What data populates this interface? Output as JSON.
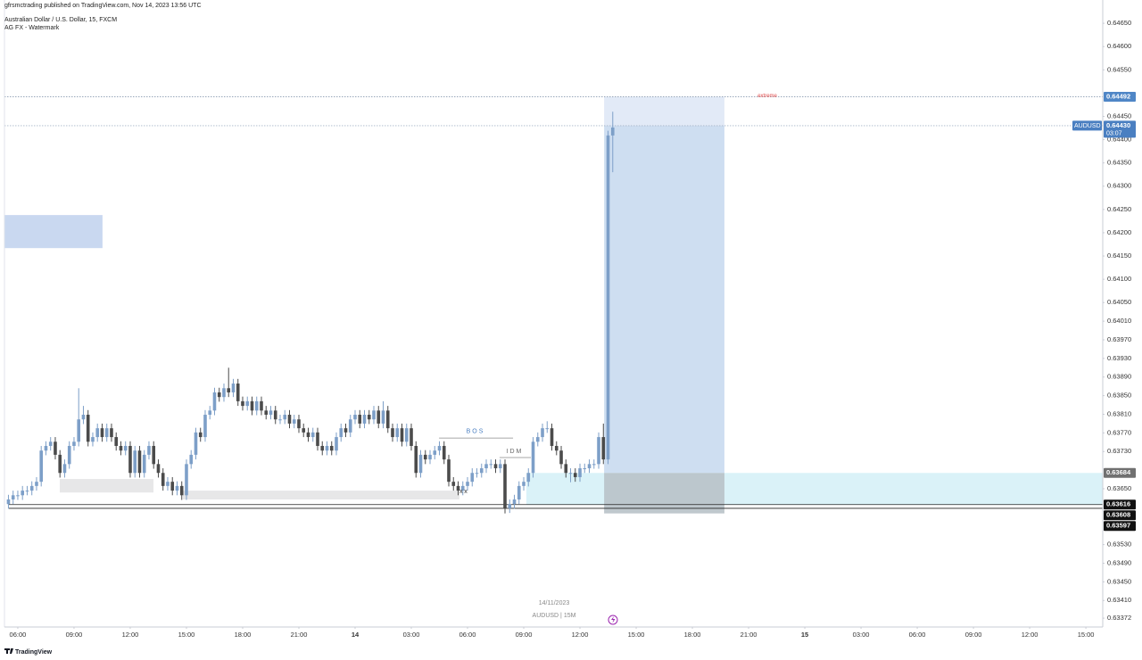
{
  "chart_data": {
    "type": "candlestick",
    "publisher": "gfrsmctrading published on TradingView.com, Nov 14, 2023 13:56 UTC",
    "title": "Australian Dollar / U.S. Dollar, 15, FXCM",
    "subtitle": "AG FX - Watermark",
    "footer_date": "14/11/2023",
    "footer_symbol": "AUDUSD | 15M",
    "brand": "TradingView",
    "up_color": "#7d9fc8",
    "down_color": "#4b4b4b",
    "x": [
      5.5,
      5.75,
      6,
      6.25,
      6.5,
      6.75,
      7,
      7.25,
      7.5,
      7.75,
      8,
      8.25,
      8.5,
      8.75,
      9,
      9.25,
      9.5,
      9.75,
      10,
      10.25,
      10.5,
      10.75,
      11,
      11.25,
      11.5,
      11.75,
      12,
      12.25,
      12.5,
      12.75,
      13,
      13.25,
      13.5,
      13.75,
      14,
      14.25,
      14.5,
      14.75,
      15,
      15.25,
      15.5,
      15.75,
      16,
      16.25,
      16.5,
      16.75,
      17,
      17.25,
      17.5,
      17.75,
      18,
      18.25,
      18.5,
      18.75,
      19,
      19.25,
      19.5,
      19.75,
      20,
      20.25,
      20.5,
      20.75,
      21,
      21.25,
      21.5,
      21.75,
      22,
      22.25,
      22.5,
      22.75,
      23,
      23.25,
      23.5,
      23.75,
      24,
      24.25,
      24.5,
      24.75,
      25,
      25.25,
      25.5,
      25.75,
      26,
      26.25,
      26.5,
      26.75,
      27,
      27.25,
      27.5,
      27.75,
      28,
      28.25,
      28.5,
      28.75,
      29,
      29.25,
      29.5,
      29.75,
      30,
      30.25,
      30.5,
      30.75,
      31,
      31.25,
      31.5,
      31.75,
      32,
      32.25,
      32.5,
      32.75,
      33,
      33.25,
      33.5,
      33.75,
      34,
      34.25,
      34.5,
      34.75,
      35,
      35.25,
      35.5,
      35.75,
      36,
      36.25,
      36.5,
      36.75,
      37,
      37.25,
      37.5,
      37.75
    ],
    "open": [
      0.63617,
      0.63627,
      0.63636,
      0.63636,
      0.63646,
      0.63646,
      0.63656,
      0.63665,
      0.63732,
      0.63742,
      0.63751,
      0.63723,
      0.63684,
      0.63703,
      0.63742,
      0.63751,
      0.63799,
      0.63809,
      0.63751,
      0.63761,
      0.6378,
      0.63761,
      0.6378,
      0.63761,
      0.63742,
      0.63732,
      0.63742,
      0.63684,
      0.63732,
      0.63684,
      0.63723,
      0.63742,
      0.63703,
      0.63684,
      0.63656,
      0.63665,
      0.63646,
      0.63656,
      0.63636,
      0.63703,
      0.63723,
      0.63771,
      0.63761,
      0.63809,
      0.63818,
      0.63857,
      0.63847,
      0.63866,
      0.63857,
      0.63876,
      0.63838,
      0.63828,
      0.63838,
      0.63818,
      0.63838,
      0.63818,
      0.63809,
      0.63818,
      0.63799,
      0.63799,
      0.63809,
      0.6379,
      0.63799,
      0.6378,
      0.63771,
      0.63761,
      0.63771,
      0.63742,
      0.63732,
      0.63742,
      0.63732,
      0.63761,
      0.6378,
      0.63771,
      0.63799,
      0.63809,
      0.6379,
      0.63809,
      0.63799,
      0.63818,
      0.6379,
      0.63818,
      0.6378,
      0.63761,
      0.6378,
      0.63751,
      0.6378,
      0.63742,
      0.63684,
      0.63723,
      0.63713,
      0.63723,
      0.63732,
      0.63742,
      0.63713,
      0.63665,
      0.63656,
      0.63646,
      0.63656,
      0.63665,
      0.63684,
      0.63684,
      0.63694,
      0.63703,
      0.63703,
      0.63694,
      0.63703,
      0.63608,
      0.63617,
      0.63627,
      0.63656,
      0.63665,
      0.63684,
      0.63751,
      0.63761,
      0.6378,
      0.6378,
      0.63742,
      0.63732,
      0.63703,
      0.63684,
      0.63684,
      0.63675,
      0.63694,
      0.63694,
      0.63703,
      0.63703,
      0.63761,
      0.63713,
      0.64409
    ],
    "high": [
      0.63637,
      0.63646,
      0.63646,
      0.63656,
      0.63656,
      0.63666,
      0.63675,
      0.63742,
      0.63752,
      0.63761,
      0.63761,
      0.63733,
      0.63713,
      0.63752,
      0.63761,
      0.63866,
      0.63828,
      0.63819,
      0.63771,
      0.6379,
      0.6379,
      0.6379,
      0.6379,
      0.63771,
      0.63752,
      0.63752,
      0.63752,
      0.63742,
      0.63742,
      0.63733,
      0.63752,
      0.63752,
      0.63713,
      0.63694,
      0.63675,
      0.63675,
      0.63666,
      0.63666,
      0.63713,
      0.63733,
      0.63781,
      0.63781,
      0.63819,
      0.63828,
      0.63867,
      0.63867,
      0.63876,
      0.6391,
      0.63886,
      0.63886,
      0.63848,
      0.63848,
      0.63848,
      0.63848,
      0.63848,
      0.63828,
      0.63828,
      0.63828,
      0.63809,
      0.63819,
      0.63819,
      0.63809,
      0.63809,
      0.6379,
      0.63781,
      0.63781,
      0.63781,
      0.63752,
      0.63752,
      0.63752,
      0.63771,
      0.6379,
      0.6379,
      0.63809,
      0.63819,
      0.63819,
      0.63819,
      0.63819,
      0.63828,
      0.63828,
      0.63838,
      0.63828,
      0.6379,
      0.6379,
      0.6379,
      0.6379,
      0.6379,
      0.63752,
      0.63733,
      0.63733,
      0.63733,
      0.63742,
      0.63752,
      0.63752,
      0.63723,
      0.63675,
      0.63666,
      0.63666,
      0.63675,
      0.63694,
      0.63694,
      0.63704,
      0.63713,
      0.63713,
      0.63713,
      0.63713,
      0.63713,
      0.63627,
      0.63637,
      0.63666,
      0.63675,
      0.63694,
      0.63761,
      0.63771,
      0.6379,
      0.63795,
      0.6379,
      0.63752,
      0.63742,
      0.63713,
      0.63694,
      0.63694,
      0.63704,
      0.63704,
      0.63713,
      0.63713,
      0.63771,
      0.6379,
      0.64419,
      0.6446
    ],
    "low": [
      0.63607,
      0.63617,
      0.63626,
      0.63626,
      0.63636,
      0.63636,
      0.63646,
      0.63655,
      0.63722,
      0.63732,
      0.63713,
      0.63674,
      0.63674,
      0.63693,
      0.63732,
      0.63741,
      0.63789,
      0.63741,
      0.63741,
      0.63751,
      0.63751,
      0.63751,
      0.63751,
      0.63732,
      0.63722,
      0.63722,
      0.63674,
      0.63674,
      0.63674,
      0.63674,
      0.63713,
      0.63693,
      0.63674,
      0.63646,
      0.63646,
      0.63636,
      0.63636,
      0.63626,
      0.63626,
      0.63693,
      0.63713,
      0.63751,
      0.63751,
      0.63799,
      0.63808,
      0.63837,
      0.63837,
      0.63847,
      0.63847,
      0.63828,
      0.63818,
      0.63818,
      0.63808,
      0.63808,
      0.63808,
      0.63799,
      0.63799,
      0.63789,
      0.63789,
      0.63789,
      0.6378,
      0.6378,
      0.6377,
      0.63761,
      0.63751,
      0.63751,
      0.63732,
      0.63722,
      0.63722,
      0.63722,
      0.63722,
      0.63751,
      0.63761,
      0.63761,
      0.63789,
      0.6378,
      0.6378,
      0.63789,
      0.63789,
      0.6378,
      0.6378,
      0.6377,
      0.63751,
      0.63751,
      0.63741,
      0.63741,
      0.63732,
      0.63674,
      0.63674,
      0.63703,
      0.63703,
      0.63713,
      0.63722,
      0.63703,
      0.63655,
      0.63646,
      0.63636,
      0.63636,
      0.63646,
      0.63655,
      0.63674,
      0.63674,
      0.63684,
      0.63693,
      0.63684,
      0.63684,
      0.63597,
      0.63598,
      0.63607,
      0.63617,
      0.63646,
      0.63655,
      0.63674,
      0.63741,
      0.63751,
      0.6377,
      0.63732,
      0.63722,
      0.63693,
      0.63674,
      0.63664,
      0.63665,
      0.63665,
      0.63684,
      0.63684,
      0.63693,
      0.63693,
      0.63703,
      0.63703,
      0.6433
    ],
    "close": [
      0.63627,
      0.63636,
      0.63636,
      0.63646,
      0.63646,
      0.63656,
      0.63665,
      0.63732,
      0.63742,
      0.63751,
      0.63723,
      0.63684,
      0.63703,
      0.63742,
      0.63751,
      0.63799,
      0.63809,
      0.63751,
      0.63761,
      0.6378,
      0.63761,
      0.6378,
      0.63761,
      0.63742,
      0.63732,
      0.63742,
      0.63684,
      0.63732,
      0.63684,
      0.63723,
      0.63742,
      0.63703,
      0.63684,
      0.63656,
      0.63665,
      0.63646,
      0.63656,
      0.63636,
      0.63703,
      0.63723,
      0.63771,
      0.63761,
      0.63809,
      0.63818,
      0.63857,
      0.63847,
      0.63866,
      0.63857,
      0.63876,
      0.63838,
      0.63828,
      0.63838,
      0.63818,
      0.63838,
      0.63818,
      0.63809,
      0.63818,
      0.63799,
      0.63799,
      0.63809,
      0.6379,
      0.63799,
      0.6378,
      0.63771,
      0.63761,
      0.63771,
      0.63742,
      0.63732,
      0.63742,
      0.63732,
      0.63761,
      0.6378,
      0.63771,
      0.63799,
      0.63809,
      0.6379,
      0.63809,
      0.63799,
      0.63818,
      0.6379,
      0.63818,
      0.6378,
      0.63761,
      0.6378,
      0.63751,
      0.6378,
      0.63742,
      0.63684,
      0.63723,
      0.63713,
      0.63723,
      0.63732,
      0.63742,
      0.63713,
      0.63665,
      0.63656,
      0.63646,
      0.63656,
      0.63665,
      0.63684,
      0.63684,
      0.63694,
      0.63703,
      0.63703,
      0.63694,
      0.63703,
      0.63608,
      0.63617,
      0.63627,
      0.63656,
      0.63665,
      0.63684,
      0.63751,
      0.63761,
      0.6378,
      0.6378,
      0.63742,
      0.63732,
      0.63703,
      0.63684,
      0.63684,
      0.63675,
      0.63694,
      0.63694,
      0.63703,
      0.63703,
      0.63761,
      0.63713,
      0.64409,
      0.64426
    ],
    "xlim": [
      5.05,
      63.9
    ],
    "xticks": [
      {
        "value": 6,
        "label": "06:00"
      },
      {
        "value": 9,
        "label": "09:00"
      },
      {
        "value": 12,
        "label": "12:00"
      },
      {
        "value": 15,
        "label": "15:00"
      },
      {
        "value": 18,
        "label": "18:00"
      },
      {
        "value": 21,
        "label": "21:00"
      },
      {
        "value": 24,
        "label": "14"
      },
      {
        "value": 27,
        "label": "03:00"
      },
      {
        "value": 30,
        "label": "06:00"
      },
      {
        "value": 33,
        "label": "09:00"
      },
      {
        "value": 36,
        "label": "12:00"
      },
      {
        "value": 39,
        "label": "15:00"
      },
      {
        "value": 42,
        "label": "18:00"
      },
      {
        "value": 45,
        "label": "21:00"
      },
      {
        "value": 48,
        "label": "15"
      },
      {
        "value": 51,
        "label": "03:00"
      },
      {
        "value": 54,
        "label": "06:00"
      },
      {
        "value": 57,
        "label": "09:00"
      },
      {
        "value": 60,
        "label": "12:00"
      },
      {
        "value": 63,
        "label": "15:00"
      }
    ],
    "ylim": [
      0.63353,
      0.647
    ],
    "yticks": [
      {
        "value": 0.6465,
        "label": "0.64650"
      },
      {
        "value": 0.646,
        "label": "0.64600"
      },
      {
        "value": 0.6455,
        "label": "0.64550"
      },
      {
        "value": 0.6445,
        "label": "0.64450"
      },
      {
        "value": 0.644,
        "label": "0.64400"
      },
      {
        "value": 0.6435,
        "label": "0.64350"
      },
      {
        "value": 0.643,
        "label": "0.64300"
      },
      {
        "value": 0.6425,
        "label": "0.64250"
      },
      {
        "value": 0.642,
        "label": "0.64200"
      },
      {
        "value": 0.6415,
        "label": "0.64150"
      },
      {
        "value": 0.641,
        "label": "0.64100"
      },
      {
        "value": 0.6405,
        "label": "0.64050"
      },
      {
        "value": 0.6401,
        "label": "0.64010"
      },
      {
        "value": 0.6397,
        "label": "0.63970"
      },
      {
        "value": 0.6393,
        "label": "0.63930"
      },
      {
        "value": 0.6389,
        "label": "0.63890"
      },
      {
        "value": 0.6385,
        "label": "0.63850"
      },
      {
        "value": 0.6381,
        "label": "0.63810"
      },
      {
        "value": 0.6377,
        "label": "0.63770"
      },
      {
        "value": 0.6373,
        "label": "0.63730"
      },
      {
        "value": 0.6365,
        "label": "0.63650"
      },
      {
        "value": 0.6353,
        "label": "0.63530"
      },
      {
        "value": 0.6349,
        "label": "0.63490"
      },
      {
        "value": 0.6345,
        "label": "0.63450"
      },
      {
        "value": 0.6341,
        "label": "0.63410"
      },
      {
        "value": 0.63372,
        "label": "0.63372"
      }
    ],
    "price_labels": [
      {
        "value": 0.64492,
        "color": "#4f86c6"
      },
      {
        "value": {
          "value": 0.6443,
          "label": "0.64430"
        },
        "color": "#4a7fc1",
        "symbol": "AUDUSD",
        "countdown": "03:07"
      },
      {
        "value": 0.63684,
        "color": "#707070"
      },
      {
        "value": 0.63616,
        "color": "#111111"
      },
      {
        "value": 0.63608,
        "color": "#111111"
      },
      {
        "value": 0.63597,
        "color": "#111111"
      }
    ],
    "levels": [
      {
        "value": 0.64492,
        "color": "#8a9bb0",
        "dash": true,
        "label": "extreme",
        "label_color": "#e04848",
        "at": 46
      },
      {
        "value": 0.6443,
        "color": "#a8b6c8",
        "dash": true
      },
      {
        "value": 0.63616,
        "color": "#222222",
        "dash": false
      },
      {
        "value": 0.63608,
        "color": "#222222",
        "dash": false
      }
    ],
    "zones": [
      {
        "from": 5.05,
        "to": 10.52,
        "low": 0.64167,
        "high": 0.64238,
        "color": "#c3d4ee"
      },
      {
        "from": 8.24,
        "to": 13.24,
        "low": 0.63642,
        "high": 0.63671,
        "color": "#e4e4e6"
      },
      {
        "from": 14.81,
        "to": 29.57,
        "low": 0.63627,
        "high": 0.63646,
        "color": "#e4e4e6"
      },
      {
        "from": 33.14,
        "to": 63.9,
        "low": 0.63616,
        "high": 0.63684,
        "color": "#d6f1f7"
      },
      {
        "from": 37.29,
        "to": 43.71,
        "low": 0.6443,
        "high": 0.64492,
        "color": "#dfe8f6"
      },
      {
        "from": 37.29,
        "to": 43.71,
        "low": 0.63684,
        "high": 0.6443,
        "color": "#c9daf0"
      },
      {
        "from": 37.29,
        "to": 43.71,
        "low": 0.63597,
        "high": 0.63684,
        "color": "#b8c2c8"
      }
    ],
    "annotations": [
      {
        "text": "BOS",
        "x": 30.43,
        "y": 0.63773,
        "color": "#4a7fc1",
        "from": 28.48,
        "to": 32.43,
        "line_y": 0.63759
      },
      {
        "text": "IDM",
        "x": 32.52,
        "y": 0.6373,
        "color": "#666666",
        "from": 31.71,
        "to": 33.38,
        "line_y": 0.63717
      },
      {
        "text": "x",
        "x": 29.71,
        "y": 0.63644,
        "color": "#333333"
      },
      {
        "text": "x",
        "x": 29.95,
        "y": 0.63644,
        "color": "#333333"
      }
    ]
  }
}
